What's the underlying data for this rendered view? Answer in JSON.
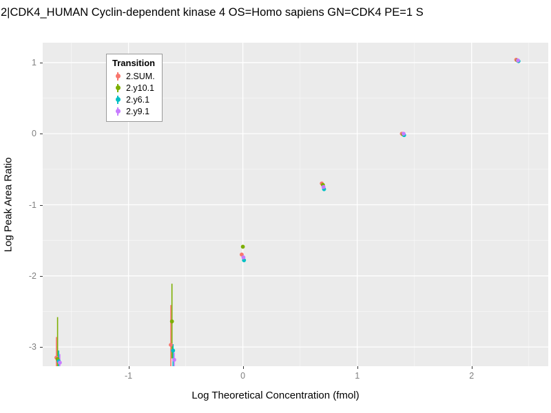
{
  "title": "2|CDK4_HUMAN Cyclin-dependent kinase 4 OS=Homo sapiens GN=CDK4 PE=1 S",
  "chart_data": {
    "type": "scatter",
    "title": "2|CDK4_HUMAN Cyclin-dependent kinase 4 OS=Homo sapiens GN=CDK4 PE=1 S",
    "xlabel": "Log Theoretical Concentration (fmol)",
    "ylabel": "Log Peak Area Ratio",
    "xlim": [
      -1.75,
      2.67
    ],
    "ylim": [
      -3.27,
      1.28
    ],
    "xticks": [
      -1,
      0,
      1,
      2
    ],
    "yticks": [
      -3,
      -2,
      -1,
      0,
      1
    ],
    "grid": "on",
    "panel_color": "#EBEBEB",
    "grid_color": "#FFFFFF",
    "legend_position": "top-left-inside",
    "legend_title": "Transition",
    "series": [
      {
        "name": "2.SUM.",
        "color": "#F8766D",
        "points": [
          {
            "x": -1.63,
            "y": -3.15,
            "lo": -3.35,
            "hi": -2.86
          },
          {
            "x": -0.63,
            "y": -2.97,
            "lo": -3.35,
            "hi": -2.41
          },
          {
            "x": -0.01,
            "y": -1.7
          },
          {
            "x": 0.69,
            "y": -0.7
          },
          {
            "x": 1.39,
            "y": 0.0
          },
          {
            "x": 2.39,
            "y": 1.04
          }
        ]
      },
      {
        "name": "2.y10.1",
        "color": "#7CAE00",
        "points": [
          {
            "x": -1.62,
            "y": -3.17,
            "lo": -3.35,
            "hi": -2.58
          },
          {
            "x": -0.62,
            "y": -2.64,
            "lo": -3.16,
            "hi": -2.11
          },
          {
            "x": 0.0,
            "y": -1.59
          },
          {
            "x": 0.7,
            "y": -0.72
          },
          {
            "x": 1.4,
            "y": -0.01
          },
          {
            "x": 2.4,
            "y": 1.03
          }
        ]
      },
      {
        "name": "2.y6.1",
        "color": "#00BFC4",
        "points": [
          {
            "x": -1.61,
            "y": -3.2,
            "lo": -3.35,
            "hi": -3.05
          },
          {
            "x": -0.61,
            "y": -3.05,
            "lo": -3.35,
            "hi": -2.96
          },
          {
            "x": 0.01,
            "y": -1.78
          },
          {
            "x": 0.71,
            "y": -0.78
          },
          {
            "x": 1.41,
            "y": -0.02
          },
          {
            "x": 2.41,
            "y": 1.02
          }
        ]
      },
      {
        "name": "2.y9.1",
        "color": "#C77CFF",
        "points": [
          {
            "x": -1.6,
            "y": -3.22,
            "lo": -3.35,
            "hi": -3.1
          },
          {
            "x": -0.6,
            "y": -3.18,
            "lo": -3.35,
            "hi": -3.08
          },
          {
            "x": 0.005,
            "y": -1.74
          },
          {
            "x": 0.705,
            "y": -0.75
          },
          {
            "x": 1.405,
            "y": 0.0
          },
          {
            "x": 2.405,
            "y": 1.03
          }
        ]
      }
    ]
  }
}
